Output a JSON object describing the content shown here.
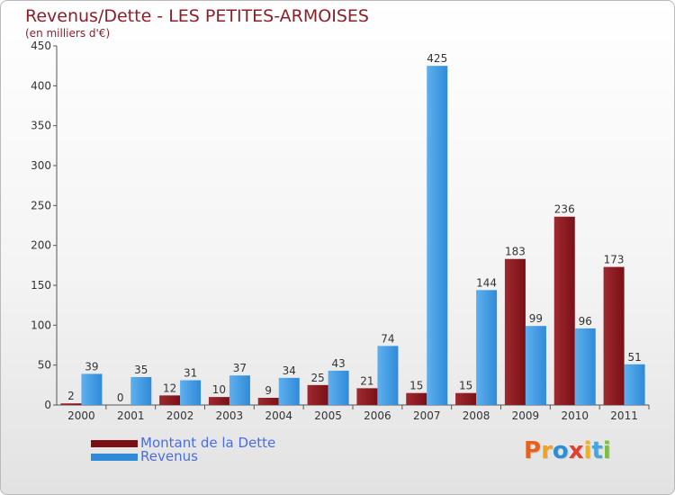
{
  "title": "Revenus/Dette - LES PETITES-ARMOISES",
  "unit": "(en milliers d'€)",
  "brand": {
    "text": "Proxiti",
    "letter_colors": [
      "#e8611a",
      "#f4a21c",
      "#2a8fd8",
      "#e43c2f",
      "#f2b01b",
      "#4aa5dc",
      "#7cbf3a"
    ]
  },
  "colors": {
    "dette": "#7a1016",
    "dette_light": "#9e2a30",
    "revenus": "#2f8ad8",
    "revenus_light": "#5eb0ee",
    "text": "#333333",
    "axis": "#555555",
    "grid": "#cccccc"
  },
  "legend": {
    "dette_label": "Montant de la Dette",
    "revenus_label": "Revenus"
  },
  "chart_data": {
    "type": "bar",
    "title": "Revenus/Dette - LES PETITES-ARMOISES",
    "ylabel": "(en milliers d'€)",
    "xlabel": "",
    "ylim": [
      0,
      450
    ],
    "yticks": [
      0,
      50,
      100,
      150,
      200,
      250,
      300,
      350,
      400,
      450
    ],
    "grid": false,
    "legend_position": "bottom-left",
    "categories": [
      "2000",
      "2001",
      "2002",
      "2003",
      "2004",
      "2005",
      "2006",
      "2007",
      "2008",
      "2009",
      "2010",
      "2011"
    ],
    "series": [
      {
        "name": "Montant de la Dette",
        "values": [
          2,
          0,
          12,
          10,
          9,
          25,
          21,
          15,
          15,
          183,
          236,
          173
        ]
      },
      {
        "name": "Revenus",
        "values": [
          39,
          35,
          31,
          37,
          34,
          43,
          74,
          425,
          144,
          99,
          96,
          51
        ]
      }
    ]
  }
}
